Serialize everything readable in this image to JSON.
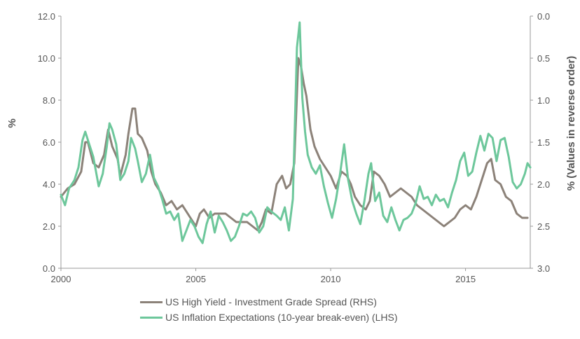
{
  "chart_data": {
    "type": "line",
    "title": "",
    "xlabel": "",
    "ylabel_left": "%",
    "ylabel_right": "% (Values in reverse order)",
    "x_ticks": [
      "2000",
      "2005",
      "2010",
      "2015"
    ],
    "x_range": [
      2000,
      2017.4
    ],
    "left_axis": {
      "range": [
        0,
        12
      ],
      "ticks": [
        "0.0",
        "2.0",
        "4.0",
        "6.0",
        "8.0",
        "10.0",
        "12.0"
      ]
    },
    "right_axis": {
      "range": [
        0,
        3
      ],
      "reversed": true,
      "ticks": [
        "0.0",
        "0.5",
        "1.0",
        "1.5",
        "2.0",
        "2.5",
        "3.0"
      ]
    },
    "grid": false,
    "legend_position": "bottom",
    "series": [
      {
        "name": "US High Yield - Investment Grade Spread (RHS)",
        "axis": "right",
        "color": "#8c8279",
        "points": [
          [
            2000.0,
            2.15
          ],
          [
            2000.25,
            2.05
          ],
          [
            2000.5,
            2.0
          ],
          [
            2000.75,
            1.85
          ],
          [
            2000.9,
            1.5
          ],
          [
            2001.0,
            1.5
          ],
          [
            2001.2,
            1.75
          ],
          [
            2001.4,
            1.8
          ],
          [
            2001.6,
            1.65
          ],
          [
            2001.75,
            1.35
          ],
          [
            2001.9,
            1.55
          ],
          [
            2002.1,
            1.7
          ],
          [
            2002.2,
            1.9
          ],
          [
            2002.4,
            1.65
          ],
          [
            2002.5,
            1.4
          ],
          [
            2002.65,
            1.1
          ],
          [
            2002.75,
            1.1
          ],
          [
            2002.85,
            1.4
          ],
          [
            2003.0,
            1.45
          ],
          [
            2003.2,
            1.6
          ],
          [
            2003.35,
            1.85
          ],
          [
            2003.5,
            2.0
          ],
          [
            2003.7,
            2.1
          ],
          [
            2003.9,
            2.25
          ],
          [
            2004.1,
            2.2
          ],
          [
            2004.3,
            2.3
          ],
          [
            2004.5,
            2.25
          ],
          [
            2004.7,
            2.35
          ],
          [
            2004.9,
            2.45
          ],
          [
            2005.0,
            2.5
          ],
          [
            2005.15,
            2.35
          ],
          [
            2005.3,
            2.3
          ],
          [
            2005.5,
            2.4
          ],
          [
            2005.7,
            2.35
          ],
          [
            2005.9,
            2.35
          ],
          [
            2006.1,
            2.35
          ],
          [
            2006.3,
            2.4
          ],
          [
            2006.5,
            2.45
          ],
          [
            2006.7,
            2.45
          ],
          [
            2006.9,
            2.45
          ],
          [
            2007.1,
            2.5
          ],
          [
            2007.3,
            2.55
          ],
          [
            2007.45,
            2.45
          ],
          [
            2007.6,
            2.3
          ],
          [
            2007.8,
            2.35
          ],
          [
            2008.0,
            2.0
          ],
          [
            2008.2,
            1.9
          ],
          [
            2008.35,
            2.05
          ],
          [
            2008.5,
            2.0
          ],
          [
            2008.65,
            1.75
          ],
          [
            2008.8,
            0.5
          ],
          [
            2008.9,
            0.6
          ],
          [
            2009.0,
            0.8
          ],
          [
            2009.1,
            0.95
          ],
          [
            2009.25,
            1.35
          ],
          [
            2009.4,
            1.55
          ],
          [
            2009.6,
            1.7
          ],
          [
            2009.8,
            1.8
          ],
          [
            2010.0,
            1.9
          ],
          [
            2010.2,
            2.05
          ],
          [
            2010.4,
            1.85
          ],
          [
            2010.6,
            1.9
          ],
          [
            2010.75,
            2.0
          ],
          [
            2010.9,
            2.15
          ],
          [
            2011.1,
            2.25
          ],
          [
            2011.3,
            2.3
          ],
          [
            2011.45,
            2.2
          ],
          [
            2011.6,
            1.85
          ],
          [
            2011.8,
            1.9
          ],
          [
            2012.0,
            2.0
          ],
          [
            2012.2,
            2.15
          ],
          [
            2012.4,
            2.1
          ],
          [
            2012.6,
            2.05
          ],
          [
            2012.8,
            2.1
          ],
          [
            2013.0,
            2.15
          ],
          [
            2013.2,
            2.25
          ],
          [
            2013.4,
            2.3
          ],
          [
            2013.6,
            2.35
          ],
          [
            2013.8,
            2.4
          ],
          [
            2014.0,
            2.45
          ],
          [
            2014.2,
            2.5
          ],
          [
            2014.4,
            2.45
          ],
          [
            2014.6,
            2.4
          ],
          [
            2014.8,
            2.3
          ],
          [
            2015.0,
            2.25
          ],
          [
            2015.2,
            2.3
          ],
          [
            2015.4,
            2.15
          ],
          [
            2015.6,
            1.95
          ],
          [
            2015.8,
            1.75
          ],
          [
            2015.95,
            1.7
          ],
          [
            2016.1,
            1.95
          ],
          [
            2016.3,
            2.0
          ],
          [
            2016.5,
            2.15
          ],
          [
            2016.7,
            2.2
          ],
          [
            2016.9,
            2.35
          ],
          [
            2017.1,
            2.4
          ],
          [
            2017.3,
            2.4
          ]
        ]
      },
      {
        "name": "US Inflation Expectations (10-year break-even) (LHS)",
        "axis": "left",
        "color": "#6dc79b",
        "points": [
          [
            2000.0,
            3.5
          ],
          [
            2000.15,
            3.0
          ],
          [
            2000.3,
            3.8
          ],
          [
            2000.5,
            4.2
          ],
          [
            2000.65,
            4.8
          ],
          [
            2000.8,
            6.1
          ],
          [
            2000.9,
            6.5
          ],
          [
            2001.05,
            5.9
          ],
          [
            2001.2,
            5.3
          ],
          [
            2001.4,
            3.9
          ],
          [
            2001.55,
            4.5
          ],
          [
            2001.7,
            5.8
          ],
          [
            2001.8,
            6.9
          ],
          [
            2001.9,
            6.6
          ],
          [
            2002.05,
            5.9
          ],
          [
            2002.2,
            4.2
          ],
          [
            2002.35,
            4.5
          ],
          [
            2002.5,
            5.1
          ],
          [
            2002.6,
            6.2
          ],
          [
            2002.75,
            5.7
          ],
          [
            2002.85,
            5.1
          ],
          [
            2003.0,
            4.1
          ],
          [
            2003.15,
            4.5
          ],
          [
            2003.3,
            5.4
          ],
          [
            2003.45,
            4.3
          ],
          [
            2003.6,
            3.9
          ],
          [
            2003.75,
            3.3
          ],
          [
            2003.9,
            2.6
          ],
          [
            2004.05,
            2.7
          ],
          [
            2004.2,
            2.3
          ],
          [
            2004.35,
            2.6
          ],
          [
            2004.5,
            1.3
          ],
          [
            2004.65,
            1.8
          ],
          [
            2004.8,
            2.3
          ],
          [
            2004.95,
            2.0
          ],
          [
            2005.1,
            1.5
          ],
          [
            2005.25,
            1.2
          ],
          [
            2005.4,
            2.1
          ],
          [
            2005.55,
            2.7
          ],
          [
            2005.7,
            1.7
          ],
          [
            2005.85,
            2.5
          ],
          [
            2006.0,
            2.2
          ],
          [
            2006.15,
            1.8
          ],
          [
            2006.3,
            1.3
          ],
          [
            2006.45,
            1.5
          ],
          [
            2006.6,
            2.0
          ],
          [
            2006.75,
            2.6
          ],
          [
            2006.9,
            2.5
          ],
          [
            2007.05,
            2.7
          ],
          [
            2007.2,
            2.4
          ],
          [
            2007.35,
            1.7
          ],
          [
            2007.5,
            2.0
          ],
          [
            2007.65,
            2.9
          ],
          [
            2007.8,
            2.7
          ],
          [
            2008.0,
            2.5
          ],
          [
            2008.15,
            2.3
          ],
          [
            2008.3,
            2.9
          ],
          [
            2008.45,
            1.8
          ],
          [
            2008.6,
            3.3
          ],
          [
            2008.75,
            10.5
          ],
          [
            2008.85,
            11.7
          ],
          [
            2008.95,
            8.1
          ],
          [
            2009.05,
            6.5
          ],
          [
            2009.15,
            5.4
          ],
          [
            2009.3,
            4.8
          ],
          [
            2009.45,
            4.5
          ],
          [
            2009.6,
            4.9
          ],
          [
            2009.75,
            3.9
          ],
          [
            2009.9,
            3.1
          ],
          [
            2010.05,
            2.4
          ],
          [
            2010.2,
            3.3
          ],
          [
            2010.35,
            4.5
          ],
          [
            2010.5,
            5.9
          ],
          [
            2010.65,
            4.2
          ],
          [
            2010.8,
            3.2
          ],
          [
            2010.95,
            2.6
          ],
          [
            2011.1,
            2.1
          ],
          [
            2011.25,
            3.2
          ],
          [
            2011.4,
            4.5
          ],
          [
            2011.5,
            5.0
          ],
          [
            2011.65,
            3.2
          ],
          [
            2011.8,
            3.6
          ],
          [
            2011.95,
            2.5
          ],
          [
            2012.1,
            2.2
          ],
          [
            2012.25,
            2.9
          ],
          [
            2012.4,
            2.3
          ],
          [
            2012.55,
            1.8
          ],
          [
            2012.7,
            2.3
          ],
          [
            2012.85,
            2.4
          ],
          [
            2013.0,
            2.6
          ],
          [
            2013.15,
            3.1
          ],
          [
            2013.3,
            3.9
          ],
          [
            2013.45,
            3.3
          ],
          [
            2013.6,
            3.4
          ],
          [
            2013.75,
            3.0
          ],
          [
            2013.9,
            3.5
          ],
          [
            2014.05,
            3.2
          ],
          [
            2014.2,
            3.3
          ],
          [
            2014.35,
            2.9
          ],
          [
            2014.5,
            3.6
          ],
          [
            2014.65,
            4.2
          ],
          [
            2014.8,
            5.1
          ],
          [
            2014.95,
            5.5
          ],
          [
            2015.1,
            4.4
          ],
          [
            2015.25,
            4.6
          ],
          [
            2015.4,
            5.5
          ],
          [
            2015.55,
            6.3
          ],
          [
            2015.7,
            5.6
          ],
          [
            2015.85,
            6.4
          ],
          [
            2016.0,
            6.2
          ],
          [
            2016.15,
            5.1
          ],
          [
            2016.3,
            6.1
          ],
          [
            2016.45,
            6.2
          ],
          [
            2016.6,
            5.3
          ],
          [
            2016.75,
            4.1
          ],
          [
            2016.9,
            3.8
          ],
          [
            2017.05,
            4.0
          ],
          [
            2017.2,
            4.5
          ],
          [
            2017.3,
            5.0
          ],
          [
            2017.4,
            4.8
          ]
        ]
      }
    ]
  }
}
